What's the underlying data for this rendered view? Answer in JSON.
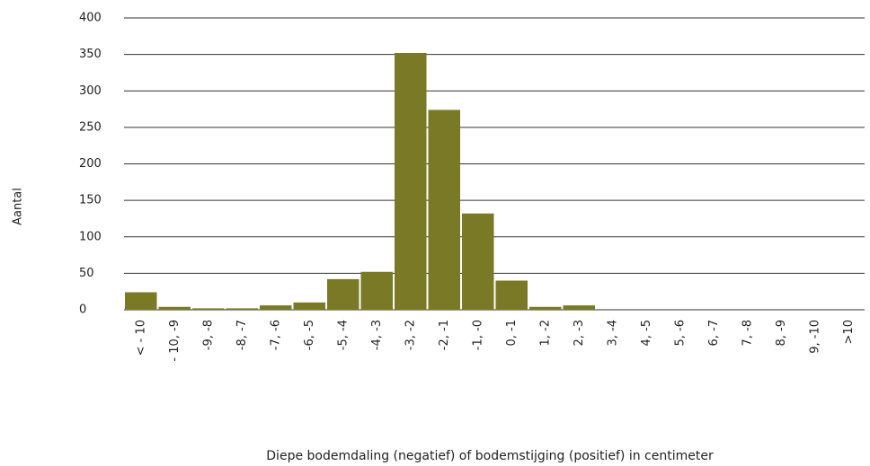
{
  "chart_data": {
    "type": "bar",
    "y_label": "Aantal",
    "x_label": "Diepe bodemdaling (negatief) of bodemstijging (positief) in centimeter",
    "categories": [
      "< - 10",
      "- 10, -9",
      "-9, -8",
      "-8, -7",
      "-7, -6",
      "-6, -5",
      "-5, -4",
      "-4, -3",
      "-3, -2",
      "-2, -1",
      "-1, -0",
      "0, -1",
      "1, -2",
      "2, -3",
      "3, -4",
      "4, -5",
      "5, -6",
      "6, -7",
      "7, -8",
      "8, -9",
      "9, -10",
      ">10"
    ],
    "values": [
      24,
      4,
      2,
      2,
      6,
      10,
      42,
      52,
      352,
      274,
      132,
      40,
      4,
      6,
      0,
      0,
      0,
      0,
      0,
      0,
      0,
      0
    ],
    "color": "#7a7a26",
    "ylim": [
      0,
      400
    ],
    "yticks": [
      0,
      50,
      100,
      150,
      200,
      250,
      300,
      350,
      400
    ],
    "grid": true
  }
}
